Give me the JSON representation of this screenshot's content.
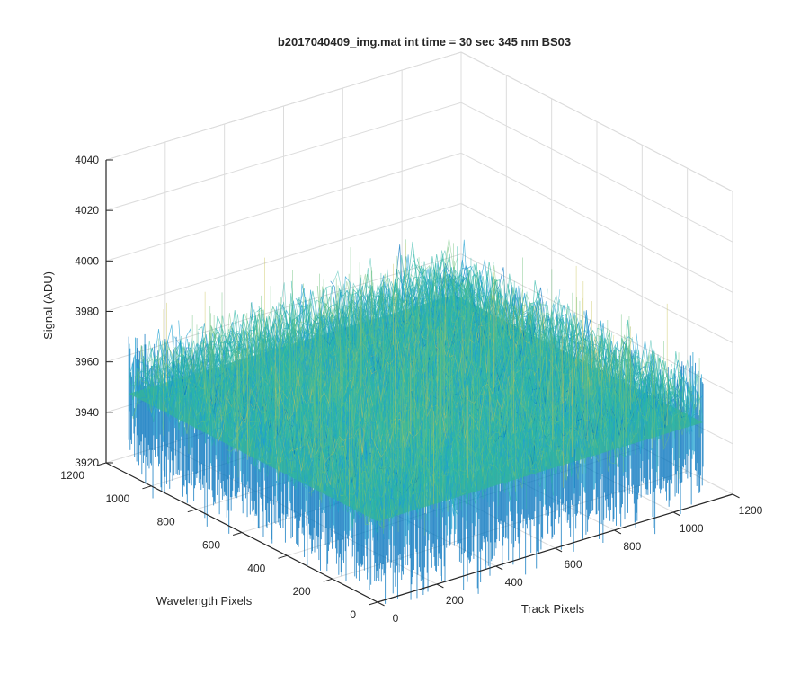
{
  "chart_data": {
    "type": "surface",
    "title": "b2017040409_img.mat int time = 30 sec  345 nm BS03",
    "xlabel": "Track Pixels",
    "ylabel": "Wavelength Pixels",
    "zlabel": "Signal (ADU)",
    "xlim": [
      0,
      1200
    ],
    "ylim": [
      0,
      1200
    ],
    "zlim": [
      3920,
      4040
    ],
    "xticks": [
      "0",
      "200",
      "400",
      "600",
      "800",
      "1000",
      "1200"
    ],
    "yticks": [
      "0",
      "200",
      "400",
      "600",
      "800",
      "1000",
      "1200"
    ],
    "zticks": [
      "3920",
      "3940",
      "3960",
      "3980",
      "4000",
      "4020",
      "4040"
    ],
    "grid": true,
    "surface": {
      "x_extent": [
        0,
        1100
      ],
      "y_extent": [
        0,
        1100
      ],
      "mean_signal": 3960,
      "noise_range": [
        3935,
        4010
      ],
      "colormap": [
        "#0072bd",
        "#1fa0d0",
        "#2db6a6",
        "#6cc07a",
        "#c9c35a",
        "#e6c84a"
      ]
    }
  }
}
